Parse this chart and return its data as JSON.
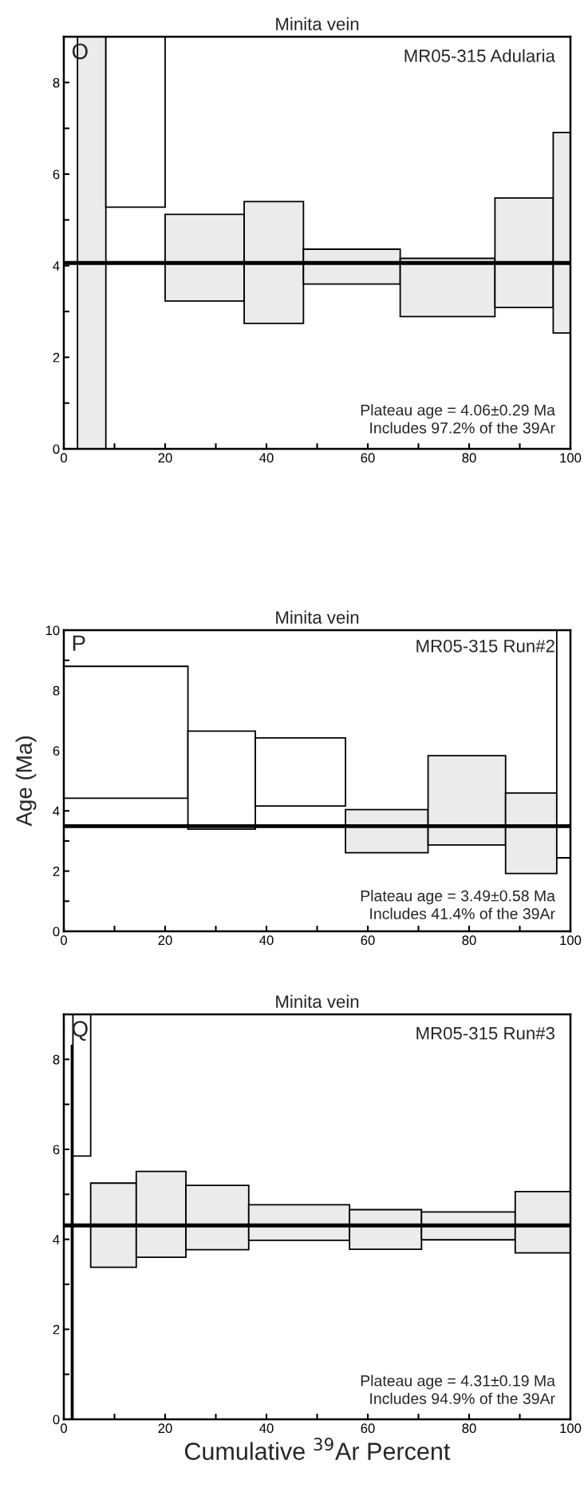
{
  "chart_data": [
    {
      "type": "histogram",
      "title": "Minita vein",
      "bins": [
        2.7,
        8.3,
        20,
        35.6,
        47.3,
        66.4,
        85.1,
        96.6,
        100
      ],
      "base": [
        0,
        5.28,
        3.23,
        2.74,
        3.6,
        2.89,
        3.09,
        2.53
      ],
      "values": [
        9,
        3.72,
        1.89,
        2.66,
        0.76,
        1.27,
        2.39,
        4.38
      ],
      "colors": [
        "#ebebeb",
        "#ffffff",
        "#ebebeb",
        "#ebebeb",
        "#ebebeb",
        "#ebebeb",
        "#ebebeb",
        "#ebebeb"
      ],
      "ref_lines": [
        {
          "axis": "y",
          "value": 4.06,
          "color": "#000000"
        }
      ],
      "annotations": [
        "O",
        "MR05-315 Adularia",
        "Plateau age = 4.06±0.29 Ma\nIncludes 97.2% of the 39Ar"
      ],
      "xlim": [
        0,
        100
      ],
      "xticks": [
        0,
        {
          "value": 10,
          "label": null
        },
        20,
        {
          "value": 30,
          "label": null
        },
        40,
        {
          "value": 50,
          "label": null
        },
        60,
        {
          "value": 70,
          "label": null
        },
        80,
        {
          "value": 90,
          "label": null
        },
        100
      ],
      "ylim": [
        0,
        9
      ],
      "yticks": [
        0,
        {
          "value": 1,
          "label": null
        },
        2,
        {
          "value": 3,
          "label": null
        },
        4,
        {
          "value": 5,
          "label": null
        },
        6,
        {
          "value": 7,
          "label": null
        },
        8
      ]
    },
    {
      "type": "histogram",
      "title": "Minita vein",
      "ylabel": "Age (Ma)",
      "bins": [
        0,
        24.5,
        37.8,
        55.6,
        71.9,
        87.2,
        97.3,
        100
      ],
      "base": [
        4.42,
        3.39,
        4.16,
        2.61,
        2.87,
        1.92,
        2.44
      ],
      "values": [
        4.38,
        3.26,
        2.26,
        1.43,
        2.96,
        2.67,
        7.56
      ],
      "colors": [
        "#ffffff",
        "#ffffff",
        "#ffffff",
        "#ebebeb",
        "#ebebeb",
        "#ebebeb",
        "#ffffff"
      ],
      "ref_lines": [
        {
          "axis": "y",
          "value": 3.49,
          "color": "#000000"
        }
      ],
      "annotations": [
        "P",
        "MR05-315 Run#2",
        "Plateau age = 3.49±0.58 Ma\nIncludes 41.4% of the 39Ar"
      ],
      "xlim": [
        0,
        100
      ],
      "xticks": [
        0,
        {
          "value": 10,
          "label": null
        },
        20,
        {
          "value": 30,
          "label": null
        },
        40,
        {
          "value": 50,
          "label": null
        },
        60,
        {
          "value": 70,
          "label": null
        },
        80,
        {
          "value": 90,
          "label": null
        },
        100
      ],
      "ylim": [
        0,
        10
      ],
      "yticks": [
        0,
        {
          "value": 1,
          "label": null
        },
        2,
        {
          "value": 3,
          "label": null
        },
        4,
        {
          "value": 5,
          "label": null
        },
        6,
        {
          "value": 7,
          "label": null
        },
        8,
        {
          "value": 9,
          "label": null
        },
        10
      ]
    },
    {
      "type": "histogram",
      "title": "Minita vein",
      "xlabel": "Cumulative $^{39}$Ar Percent",
      "bins": [
        1.5,
        1.8,
        5.3,
        14.3,
        24.1,
        36.5,
        56.4,
        70.6,
        89.1,
        100
      ],
      "base": [
        0,
        5.85,
        3.38,
        3.6,
        3.77,
        3.98,
        3.78,
        3.99,
        3.7
      ],
      "values": [
        8.31,
        3.15,
        1.87,
        1.91,
        1.43,
        0.79,
        0.88,
        0.62,
        1.36
      ],
      "colors": [
        "#ffffff",
        "#ffffff",
        "#ebebeb",
        "#ebebeb",
        "#ebebeb",
        "#ebebeb",
        "#ebebeb",
        "#ebebeb",
        "#ebebeb"
      ],
      "ref_lines": [
        {
          "axis": "y",
          "value": 4.31,
          "color": "#000000"
        }
      ],
      "annotations": [
        "Q",
        "MR05-315 Run#3",
        "Plateau age = 4.31±0.19 Ma\nIncludes 94.9% of the 39Ar"
      ],
      "xlim": [
        0,
        100
      ],
      "xticks": [
        0,
        {
          "value": 10,
          "label": null
        },
        20,
        {
          "value": 30,
          "label": null
        },
        40,
        {
          "value": 50,
          "label": null
        },
        60,
        {
          "value": 70,
          "label": null
        },
        80,
        {
          "value": 90,
          "label": null
        },
        100
      ],
      "ylim": [
        0,
        9
      ],
      "yticks": [
        0,
        {
          "value": 1,
          "label": null
        },
        2,
        {
          "value": 3,
          "label": null
        },
        4,
        {
          "value": 5,
          "label": null
        },
        6,
        {
          "value": 7,
          "label": null
        },
        8
      ]
    }
  ]
}
